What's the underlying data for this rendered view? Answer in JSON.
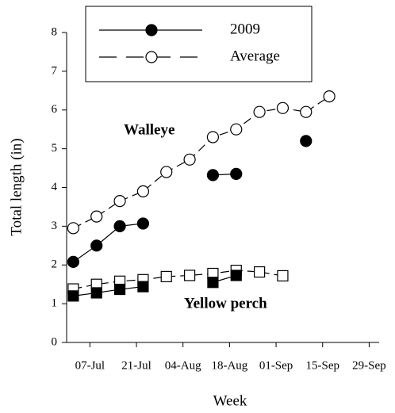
{
  "chart_data": {
    "type": "line",
    "xlabel": "Week",
    "ylabel": "Total length (in)",
    "x": [
      "02-Jul",
      "09-Jul",
      "16-Jul",
      "23-Jul",
      "30-Jul",
      "06-Aug",
      "13-Aug",
      "20-Aug",
      "27-Aug",
      "03-Sep",
      "10-Sep",
      "17-Sep"
    ],
    "xlim": [
      "30-Jun",
      "02-Oct"
    ],
    "xticks": [
      "07-Jul",
      "21-Jul",
      "04-Aug",
      "18-Aug",
      "01-Sep",
      "15-Sep",
      "29-Sep"
    ],
    "ylim": [
      0,
      8
    ],
    "yticks": [
      0,
      1,
      2,
      3,
      4,
      5,
      6,
      7,
      8
    ],
    "legend": [
      {
        "name": "2009",
        "filled": true,
        "dashed": false
      },
      {
        "name": "Average",
        "filled": false,
        "dashed": true
      }
    ],
    "groups": [
      "Walleye",
      "Yellow perch"
    ],
    "series": [
      {
        "group": 0,
        "style": 1,
        "marker": "circle",
        "values": [
          2.95,
          3.25,
          3.65,
          3.9,
          4.4,
          4.72,
          5.3,
          5.5,
          5.95,
          6.05,
          5.95,
          6.35
        ]
      },
      {
        "group": 0,
        "style": 0,
        "marker": "circle",
        "values": [
          2.08,
          2.5,
          3.0,
          3.07,
          null,
          null,
          4.32,
          4.35,
          null,
          null,
          5.2,
          null
        ]
      },
      {
        "group": 1,
        "style": 1,
        "marker": "square",
        "values": [
          1.38,
          1.5,
          1.58,
          1.62,
          1.7,
          1.73,
          1.78,
          1.86,
          1.82,
          1.72,
          null,
          null
        ]
      },
      {
        "group": 1,
        "style": 0,
        "marker": "square",
        "values": [
          1.2,
          1.28,
          1.37,
          1.44,
          null,
          null,
          1.55,
          1.73,
          null,
          null,
          null,
          null
        ]
      }
    ]
  }
}
